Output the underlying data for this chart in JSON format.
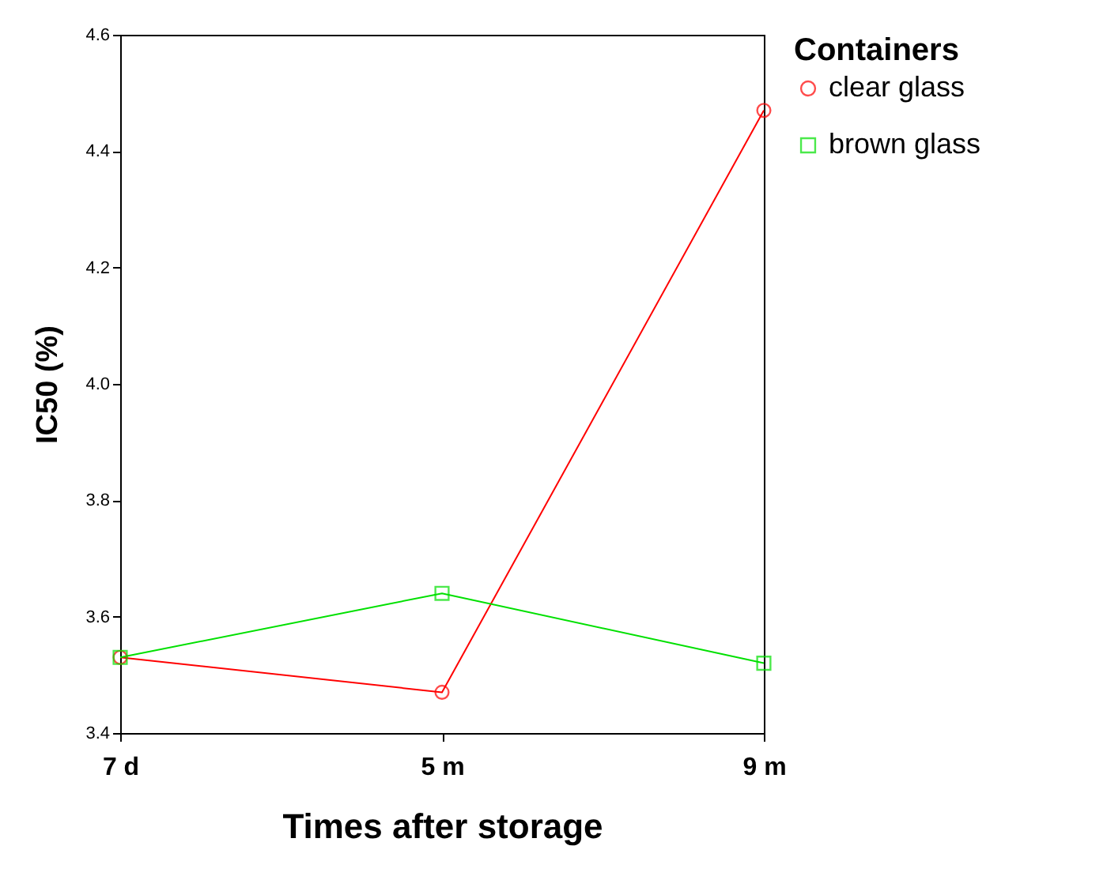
{
  "chart_data": {
    "type": "line",
    "xlabel": "Times after storage",
    "ylabel": "IC50 (%)",
    "legend_title": "Containers",
    "categories": [
      "7 d",
      "5 m",
      "9 m"
    ],
    "series": [
      {
        "name": "clear glass",
        "color": "#ff0000",
        "marker": "circle",
        "values": [
          3.53,
          3.47,
          4.47
        ]
      },
      {
        "name": "brown glass",
        "color": "#00e000",
        "marker": "square",
        "values": [
          3.53,
          3.64,
          3.52
        ]
      }
    ],
    "ylim": [
      3.4,
      4.6
    ],
    "yticks": [
      3.4,
      3.6,
      3.8,
      {
        "value": 4,
        "label": "4.0"
      },
      4.2,
      4.4,
      4.6
    ],
    "grid": false,
    "legend": "right",
    "line_style": "solid"
  }
}
